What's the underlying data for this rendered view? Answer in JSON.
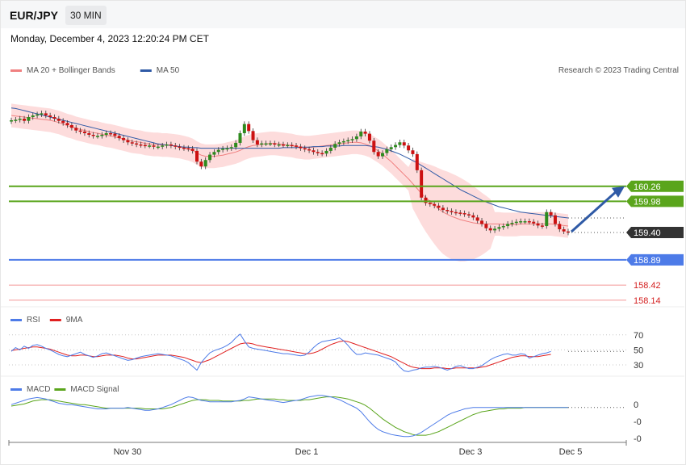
{
  "header": {
    "pair": "EUR/JPY",
    "timeframe": "30 MIN"
  },
  "datetime": "Monday, December 4, 2023 12:20:24 PM CET",
  "copyright": "Research © 2023 Trading Central",
  "colors": {
    "support": "#4d7be8",
    "resistance": "#5aa51c",
    "bearish": "#cc1111",
    "bullish": "#2e8b1e",
    "bollinger": "#fddcdc",
    "ma20": "#f08080",
    "ma50": "#2f5aa6",
    "current": "#333333",
    "rsi": "#4d7be8",
    "rsi_ma": "#e02020",
    "macd": "#4d7be8",
    "macd_signal": "#5aa51c",
    "target_arrow": "#2f5aa6"
  },
  "chart_data": [
    {
      "type": "line",
      "name": "price",
      "legend": [
        {
          "label": "MA 20 + Bollinger Bands",
          "color": "#f08080"
        },
        {
          "label": "MA 50",
          "color": "#2f5aa6"
        }
      ],
      "x_ticks": [
        "Nov 30",
        "Dec 1",
        "Dec 3",
        "Dec 5"
      ],
      "levels": [
        {
          "value": 160.26,
          "label": "160.26",
          "kind": "resistance"
        },
        {
          "value": 159.98,
          "label": "159.98",
          "kind": "resistance"
        },
        {
          "value": 159.4,
          "label": "159.40",
          "kind": "current"
        },
        {
          "value": 158.89,
          "label": "158.89",
          "kind": "support"
        },
        {
          "value": 158.42,
          "label": "158.42",
          "kind": "lower"
        },
        {
          "value": 158.14,
          "label": "158.14",
          "kind": "lower"
        }
      ],
      "close": [
        161.49,
        161.5,
        161.52,
        161.48,
        161.55,
        161.58,
        161.6,
        161.62,
        161.58,
        161.55,
        161.52,
        161.48,
        161.44,
        161.4,
        161.35,
        161.3,
        161.28,
        161.25,
        161.22,
        161.2,
        161.2,
        161.22,
        161.25,
        161.24,
        161.2,
        161.16,
        161.12,
        161.08,
        161.06,
        161.04,
        161.03,
        161.02,
        161.02,
        161.0,
        161.0,
        161.02,
        161.04,
        161.02,
        161.0,
        160.98,
        160.97,
        160.96,
        160.92,
        160.72,
        160.63,
        160.75,
        160.85,
        160.9,
        160.94,
        160.96,
        160.97,
        160.99,
        161.07,
        161.25,
        161.42,
        161.29,
        161.12,
        161.04,
        161.06,
        161.06,
        161.06,
        161.04,
        161.04,
        161.03,
        161.03,
        161.02,
        161.0,
        160.97,
        160.95,
        160.93,
        160.9,
        160.88,
        160.87,
        160.92,
        160.98,
        161.05,
        161.08,
        161.1,
        161.12,
        161.14,
        161.19,
        161.28,
        161.24,
        161.11,
        160.9,
        160.82,
        160.88,
        160.95,
        160.99,
        161.03,
        161.08,
        161.02,
        160.93,
        160.86,
        160.56,
        160.05,
        159.95,
        159.93,
        159.9,
        159.86,
        159.82,
        159.8,
        159.78,
        159.77,
        159.76,
        159.74,
        159.72,
        159.68,
        159.62,
        159.56,
        159.48,
        159.44,
        159.47,
        159.5,
        159.52,
        159.56,
        159.58,
        159.6,
        159.61,
        159.61,
        159.6,
        159.57,
        159.53,
        159.52,
        159.78,
        159.72,
        159.56,
        159.46,
        159.42,
        159.4
      ],
      "ma20": [
        161.58,
        161.57,
        161.56,
        161.55,
        161.54,
        161.53,
        161.52,
        161.51,
        161.5,
        161.49,
        161.47,
        161.45,
        161.42,
        161.39,
        161.37,
        161.34,
        161.32,
        161.3,
        161.28,
        161.26,
        161.25,
        161.23,
        161.21,
        161.2,
        161.18,
        161.16,
        161.14,
        161.12,
        161.1,
        161.09,
        161.08,
        161.06,
        161.05,
        161.04,
        161.04,
        161.03,
        161.03,
        161.02,
        161.01,
        161.0,
        160.98,
        160.96,
        160.93,
        160.88,
        160.84,
        160.82,
        160.82,
        160.82,
        160.83,
        160.84,
        160.86,
        160.88,
        160.9,
        160.93,
        160.97,
        161.0,
        161.02,
        161.03,
        161.04,
        161.05,
        161.06,
        161.06,
        161.05,
        161.04,
        161.03,
        161.02,
        161.0,
        160.99,
        160.98,
        160.98,
        160.99,
        161.0,
        161.01,
        161.02,
        161.03,
        161.04,
        161.05,
        161.06,
        161.07,
        161.08,
        161.08,
        161.07,
        161.05,
        161.02,
        160.97,
        160.92,
        160.86,
        160.79,
        160.72,
        160.64,
        160.56,
        160.48,
        160.4,
        160.31,
        160.22,
        160.13,
        160.05,
        159.98,
        159.91,
        159.84,
        159.78,
        159.74,
        159.7,
        159.67,
        159.64,
        159.62,
        159.6,
        159.58,
        159.57,
        159.56,
        159.56,
        159.56,
        159.56,
        159.56,
        159.55,
        159.55,
        159.55,
        159.55,
        159.56,
        159.56,
        159.56,
        159.56,
        159.56,
        159.56,
        159.56,
        159.56,
        159.55,
        159.54,
        159.53,
        159.52
      ],
      "ma50": [
        161.72,
        161.71,
        161.69,
        161.67,
        161.65,
        161.63,
        161.61,
        161.59,
        161.57,
        161.55,
        161.53,
        161.51,
        161.49,
        161.47,
        161.45,
        161.43,
        161.41,
        161.39,
        161.37,
        161.35,
        161.33,
        161.31,
        161.29,
        161.27,
        161.25,
        161.23,
        161.21,
        161.19,
        161.17,
        161.15,
        161.13,
        161.11,
        161.09,
        161.07,
        161.05,
        161.04,
        161.03,
        161.02,
        161.01,
        161.0,
        160.99,
        160.99,
        160.98,
        160.98,
        160.97,
        160.97,
        160.97,
        160.97,
        160.97,
        160.97,
        160.97,
        160.97,
        160.97,
        160.97,
        160.97,
        160.97,
        160.97,
        160.97,
        160.97,
        160.97,
        160.97,
        160.97,
        160.97,
        160.98,
        160.98,
        160.98,
        160.98,
        160.99,
        160.99,
        160.99,
        161.0,
        161.0,
        161.0,
        161.01,
        161.01,
        161.01,
        161.01,
        161.02,
        161.02,
        161.02,
        161.02,
        161.02,
        161.02,
        161.01,
        161.0,
        160.99,
        160.97,
        160.95,
        160.92,
        160.89,
        160.86,
        160.82,
        160.78,
        160.74,
        160.7,
        160.65,
        160.6,
        160.55,
        160.5,
        160.45,
        160.4,
        160.35,
        160.3,
        160.25,
        160.2,
        160.16,
        160.12,
        160.08,
        160.04,
        160.0,
        159.97,
        159.94,
        159.91,
        159.88,
        159.86,
        159.84,
        159.82,
        159.8,
        159.78,
        159.77,
        159.76,
        159.75,
        159.74,
        159.73,
        159.72,
        159.71,
        159.7,
        159.69,
        159.68,
        159.67
      ]
    },
    {
      "type": "line",
      "name": "rsi",
      "legend": [
        {
          "label": "RSI",
          "color": "#4d7be8"
        },
        {
          "label": "9MA",
          "color": "#e02020"
        }
      ],
      "y_ticks": [
        "70",
        "50",
        "30"
      ],
      "rsi": [
        48,
        53,
        50,
        55,
        52,
        56,
        57,
        55,
        52,
        50,
        47,
        44,
        42,
        41,
        43,
        45,
        47,
        44,
        42,
        40,
        42,
        45,
        46,
        44,
        42,
        40,
        38,
        36,
        37,
        39,
        41,
        42,
        43,
        44,
        45,
        44,
        43,
        42,
        40,
        38,
        36,
        33,
        28,
        23,
        33,
        40,
        46,
        49,
        51,
        53,
        56,
        60,
        66,
        71,
        62,
        54,
        52,
        51,
        50,
        49,
        48,
        47,
        46,
        45,
        45,
        44,
        43,
        42,
        43,
        47,
        53,
        58,
        61,
        62,
        63,
        64,
        66,
        62,
        56,
        49,
        44,
        44,
        46,
        45,
        44,
        43,
        41,
        39,
        37,
        34,
        27,
        22,
        21,
        23,
        24,
        26,
        27,
        27,
        28,
        27,
        25,
        23,
        25,
        28,
        29,
        27,
        25,
        25,
        27,
        29,
        33,
        37,
        40,
        42,
        44,
        45,
        43,
        43,
        45,
        44,
        39,
        41,
        43,
        45,
        46,
        48
      ],
      "rsi_ma": [
        49,
        50,
        51,
        52,
        53,
        54,
        54,
        53,
        52,
        51,
        49,
        47,
        45,
        43,
        42,
        42,
        43,
        43,
        42,
        41,
        41,
        42,
        43,
        43,
        43,
        42,
        41,
        39,
        38,
        38,
        39,
        40,
        41,
        42,
        43,
        43,
        43,
        43,
        42,
        41,
        40,
        38,
        36,
        34,
        33,
        35,
        37,
        40,
        43,
        46,
        49,
        52,
        55,
        58,
        59,
        59,
        58,
        56,
        55,
        54,
        53,
        52,
        51,
        50,
        49,
        48,
        47,
        46,
        45,
        45,
        46,
        48,
        51,
        54,
        57,
        59,
        61,
        62,
        61,
        59,
        57,
        55,
        53,
        51,
        49,
        47,
        45,
        43,
        41,
        38,
        35,
        32,
        29,
        27,
        26,
        25,
        25,
        25,
        26,
        26,
        26,
        25,
        25,
        26,
        26,
        26,
        26,
        26,
        26,
        27,
        28,
        30,
        32,
        34,
        36,
        38,
        40,
        41,
        42,
        42,
        41,
        41,
        41,
        42,
        43,
        44
      ]
    },
    {
      "type": "line",
      "name": "macd",
      "legend": [
        {
          "label": "MACD",
          "color": "#4d7be8"
        },
        {
          "label": "MACD Signal",
          "color": "#5aa51c"
        }
      ],
      "y_ticks": [
        "0",
        "-0",
        "-0"
      ],
      "macd": [
        0.02,
        0.04,
        0.06,
        0.08,
        0.1,
        0.11,
        0.12,
        0.11,
        0.1,
        0.08,
        0.06,
        0.04,
        0.03,
        0.02,
        0.02,
        0.01,
        0.0,
        -0.01,
        -0.02,
        -0.03,
        -0.04,
        -0.04,
        -0.04,
        -0.03,
        -0.03,
        -0.03,
        -0.03,
        -0.02,
        -0.03,
        -0.04,
        -0.05,
        -0.06,
        -0.06,
        -0.05,
        -0.04,
        -0.02,
        0.0,
        0.02,
        0.05,
        0.08,
        0.11,
        0.13,
        0.12,
        0.1,
        0.08,
        0.07,
        0.06,
        0.06,
        0.06,
        0.06,
        0.06,
        0.06,
        0.07,
        0.08,
        0.1,
        0.13,
        0.12,
        0.11,
        0.1,
        0.09,
        0.08,
        0.07,
        0.06,
        0.05,
        0.06,
        0.07,
        0.08,
        0.09,
        0.11,
        0.13,
        0.14,
        0.15,
        0.15,
        0.14,
        0.13,
        0.11,
        0.09,
        0.06,
        0.03,
        0.0,
        -0.03,
        -0.08,
        -0.15,
        -0.22,
        -0.28,
        -0.33,
        -0.36,
        -0.38,
        -0.4,
        -0.41,
        -0.42,
        -0.43,
        -0.43,
        -0.42,
        -0.4,
        -0.37,
        -0.33,
        -0.29,
        -0.25,
        -0.21,
        -0.17,
        -0.13,
        -0.1,
        -0.08,
        -0.06,
        -0.04,
        -0.03,
        -0.02,
        -0.02,
        -0.02,
        -0.02,
        -0.02,
        -0.02,
        -0.02,
        -0.02,
        -0.02,
        -0.02,
        -0.02,
        -0.02,
        -0.02,
        -0.02,
        -0.02,
        -0.02,
        -0.02,
        -0.02,
        -0.02,
        -0.02,
        -0.02,
        -0.02,
        -0.02
      ],
      "signal": [
        0.0,
        0.01,
        0.02,
        0.03,
        0.05,
        0.07,
        0.08,
        0.09,
        0.09,
        0.09,
        0.08,
        0.07,
        0.06,
        0.05,
        0.04,
        0.03,
        0.02,
        0.02,
        0.01,
        0.0,
        -0.01,
        -0.02,
        -0.03,
        -0.03,
        -0.03,
        -0.03,
        -0.03,
        -0.03,
        -0.03,
        -0.03,
        -0.03,
        -0.04,
        -0.04,
        -0.04,
        -0.04,
        -0.04,
        -0.03,
        -0.02,
        0.0,
        0.02,
        0.04,
        0.06,
        0.08,
        0.09,
        0.09,
        0.09,
        0.08,
        0.08,
        0.08,
        0.07,
        0.07,
        0.07,
        0.07,
        0.07,
        0.08,
        0.08,
        0.09,
        0.1,
        0.1,
        0.1,
        0.1,
        0.1,
        0.09,
        0.09,
        0.08,
        0.08,
        0.08,
        0.08,
        0.09,
        0.09,
        0.1,
        0.11,
        0.12,
        0.13,
        0.13,
        0.13,
        0.12,
        0.11,
        0.1,
        0.08,
        0.06,
        0.04,
        0.01,
        -0.03,
        -0.08,
        -0.13,
        -0.18,
        -0.22,
        -0.26,
        -0.3,
        -0.33,
        -0.36,
        -0.38,
        -0.4,
        -0.41,
        -0.41,
        -0.41,
        -0.4,
        -0.38,
        -0.36,
        -0.33,
        -0.3,
        -0.27,
        -0.24,
        -0.21,
        -0.18,
        -0.15,
        -0.12,
        -0.1,
        -0.08,
        -0.07,
        -0.06,
        -0.05,
        -0.04,
        -0.04,
        -0.03,
        -0.03,
        -0.03,
        -0.03,
        -0.02,
        -0.02,
        -0.02,
        -0.02,
        -0.02,
        -0.02,
        -0.02,
        -0.02,
        -0.02,
        -0.02,
        -0.02
      ]
    }
  ]
}
